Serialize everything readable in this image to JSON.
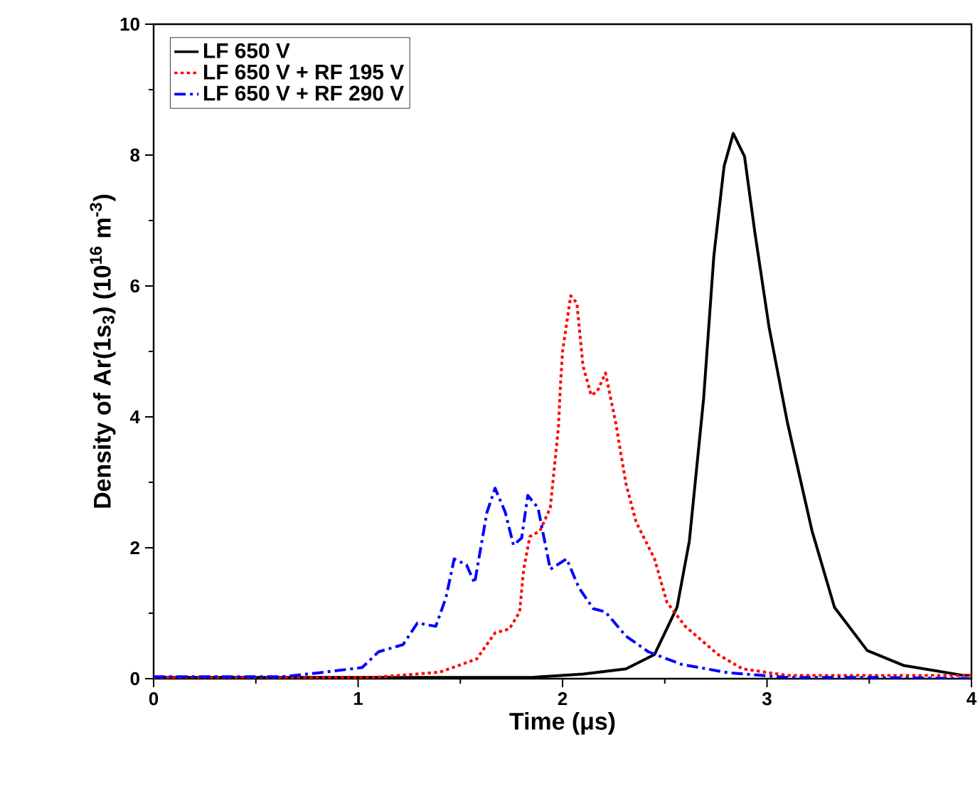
{
  "chart_data": {
    "type": "line",
    "xlabel": "Time (μs)",
    "ylabel": "Density of Ar(1s$_{3}$) (10$^{16}$ m$^{-3}$)",
    "xlim": [
      0,
      4
    ],
    "ylim": [
      0,
      10
    ],
    "xticks": [
      0,
      1,
      2,
      3,
      4
    ],
    "yticks": [
      0,
      2,
      4,
      6,
      8,
      10
    ],
    "legend": "top left",
    "grid": false,
    "marker": "none",
    "series": [
      {
        "name": "LF 650 V",
        "color": "#000000",
        "line_style": "solid",
        "x": [
          0,
          0.5,
          1.0,
          1.5,
          1.85,
          2.1,
          2.31,
          2.45,
          2.56,
          2.62,
          2.69,
          2.74,
          2.79,
          2.835,
          2.89,
          2.94,
          3.01,
          3.1,
          3.22,
          3.33,
          3.49,
          3.67,
          3.96,
          4.0
        ],
        "values": [
          0.02,
          0.02,
          0.02,
          0.02,
          0.02,
          0.07,
          0.15,
          0.37,
          1.09,
          2.1,
          4.28,
          6.46,
          7.83,
          8.33,
          7.98,
          6.83,
          5.37,
          3.91,
          2.26,
          1.09,
          0.43,
          0.2,
          0.05,
          0.05
        ]
      },
      {
        "name": "LF 650 V + RF 195 V",
        "color": "#ff0000",
        "line_style": "dotted",
        "x": [
          0,
          0.5,
          1.08,
          1.4,
          1.58,
          1.67,
          1.74,
          1.79,
          1.81,
          1.84,
          1.89,
          1.94,
          1.98,
          1.99,
          2.0,
          2.04,
          2.07,
          2.1,
          2.14,
          2.17,
          2.21,
          2.26,
          2.31,
          2.36,
          2.45,
          2.51,
          2.6,
          2.76,
          2.88,
          3.1,
          3.5,
          4.0
        ],
        "values": [
          0.02,
          0.02,
          0.02,
          0.1,
          0.3,
          0.7,
          0.76,
          1.02,
          1.67,
          2.17,
          2.26,
          2.61,
          3.85,
          4.5,
          5.0,
          5.85,
          5.74,
          4.78,
          4.33,
          4.39,
          4.67,
          3.91,
          2.98,
          2.39,
          1.83,
          1.17,
          0.8,
          0.37,
          0.15,
          0.05,
          0.05,
          0.05
        ]
      },
      {
        "name": "LF 650 V + RF 290 V",
        "color": "#0000ff",
        "line_style": "dashed",
        "x": [
          0,
          0.3,
          0.63,
          0.81,
          1.02,
          1.1,
          1.22,
          1.29,
          1.38,
          1.43,
          1.47,
          1.53,
          1.57,
          1.63,
          1.67,
          1.72,
          1.76,
          1.8,
          1.83,
          1.88,
          1.94,
          2.02,
          2.08,
          2.15,
          2.21,
          2.31,
          2.42,
          2.58,
          2.81,
          3.1,
          3.5,
          4.0
        ],
        "values": [
          0.03,
          0.03,
          0.03,
          0.09,
          0.17,
          0.41,
          0.52,
          0.85,
          0.8,
          1.24,
          1.83,
          1.74,
          1.46,
          2.54,
          2.91,
          2.54,
          2.04,
          2.15,
          2.8,
          2.61,
          1.67,
          1.83,
          1.39,
          1.07,
          1.02,
          0.65,
          0.41,
          0.22,
          0.09,
          0.02,
          0.02,
          0.0
        ]
      }
    ]
  }
}
